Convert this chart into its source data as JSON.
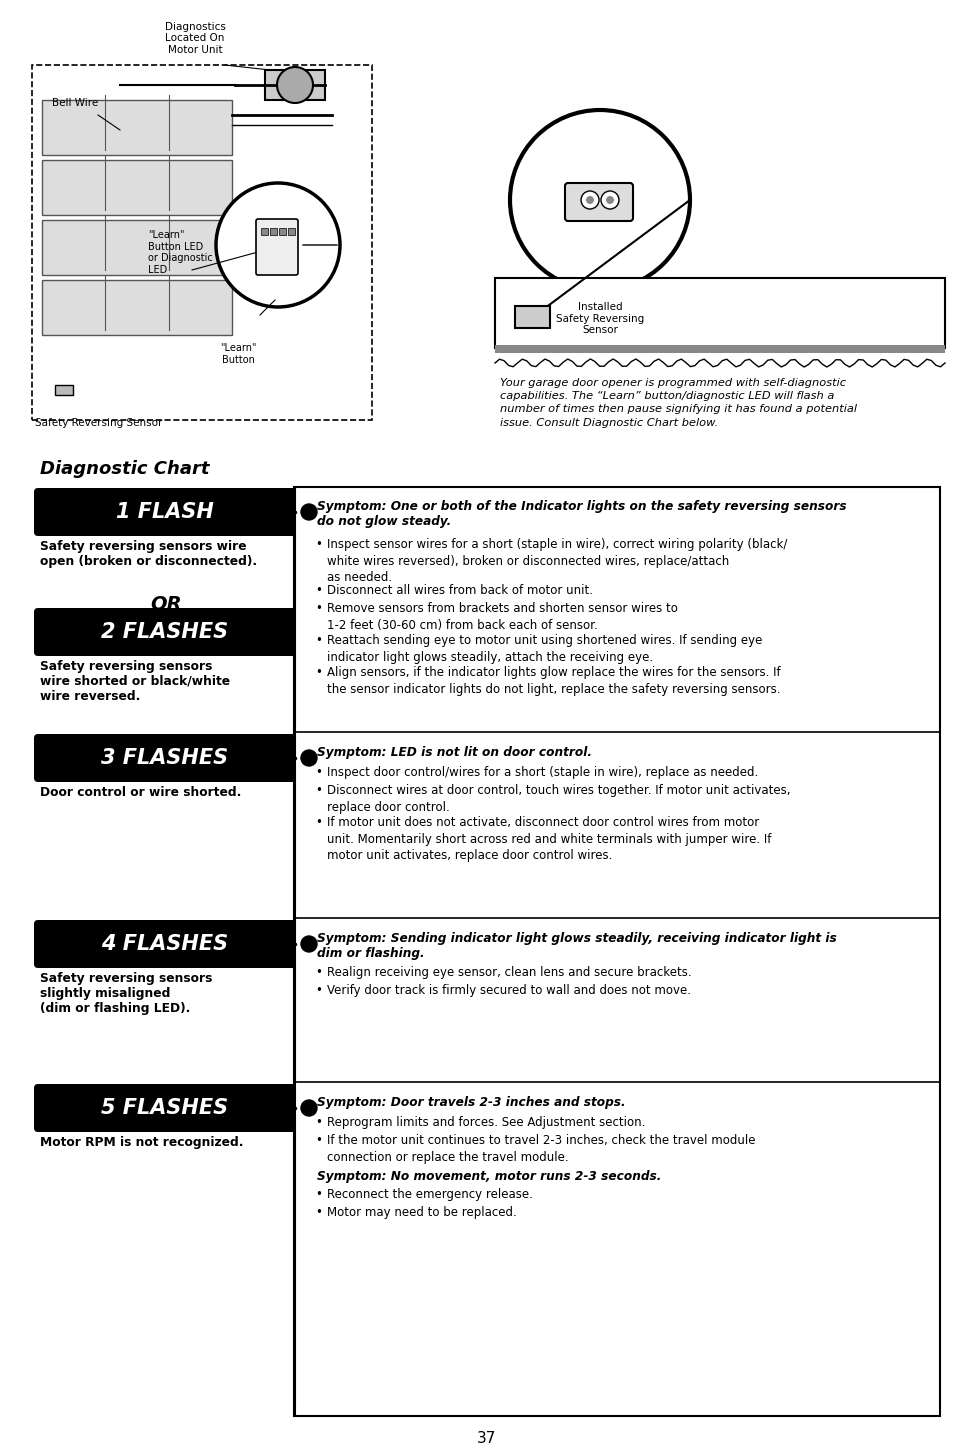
{
  "page_bg": "#ffffff",
  "page_number": "37",
  "title": "Diagnostic Chart",
  "intro_text": "Your garage door opener is programmed with self-diagnostic\ncapabilities. The “Learn” button/diagnostic LED will flash a\nnumber of times then pause signifying it has found a potential\nissue. Consult Diagnostic Chart below.",
  "rows": [
    {
      "label": "1 FLASH",
      "left_desc1": "Safety reversing sensors wire\nopen (broken or disconnected).",
      "has_or": true,
      "label2": "2 FLASHES",
      "left_desc2": "Safety reversing sensors\nwire shorted or black/white\nwire reversed.",
      "symptom": "Symptom: One or both of the Indicator lights on the safety reversing sensors\ndo not glow steady.",
      "bullets": [
        "Inspect sensor wires for a short (staple in wire), correct wiring polarity (black/\nwhite wires reversed), broken or disconnected wires, replace/attach\nas needed.",
        "Disconnect all wires from back of motor unit.",
        "Remove sensors from brackets and shorten sensor wires to\n1-2 feet (30-60 cm) from back each of sensor.",
        "Reattach sending eye to motor unit using shortened wires. If sending eye\nindicator light glows steadily, attach the receiving eye.",
        "Align sensors, if the indicator lights glow replace the wires for the sensors. If\nthe sensor indicator lights do not light, replace the safety reversing sensors."
      ]
    },
    {
      "label": "3 FLASHES",
      "left_desc1": "Door control or wire shorted.",
      "has_or": false,
      "symptom": "Symptom: LED is not lit on door control.",
      "bullets": [
        "Inspect door control/wires for a short (staple in wire), replace as needed.",
        "Disconnect wires at door control, touch wires together. If motor unit activates,\nreplace door control.",
        "If motor unit does not activate, disconnect door control wires from motor\nunit. Momentarily short across red and white terminals with jumper wire. If\nmotor unit activates, replace door control wires."
      ]
    },
    {
      "label": "4 FLASHES",
      "left_desc1": "Safety reversing sensors\nslightly misaligned\n(dim or flashing LED).",
      "has_or": false,
      "symptom": "Symptom: Sending indicator light glows steadily, receiving indicator light is\ndim or flashing.",
      "bullets": [
        "Realign receiving eye sensor, clean lens and secure brackets.",
        "Verify door track is firmly secured to wall and does not move."
      ]
    },
    {
      "label": "5 FLASHES",
      "left_desc1": "Motor RPM is not recognized.",
      "has_or": false,
      "symptom": "Symptom: Door travels 2-3 inches and stops.",
      "bullets": [
        "Reprogram limits and forces. See Adjustment section.",
        "If the motor unit continues to travel 2-3 inches, check the travel module\nconnection or replace the travel module."
      ],
      "extra_symptom": "Symptom: No movement, motor runs 2-3 seconds.",
      "extra_bullets": [
        "Reconnect the emergency release.",
        "Motor may need to be replaced."
      ]
    }
  ]
}
